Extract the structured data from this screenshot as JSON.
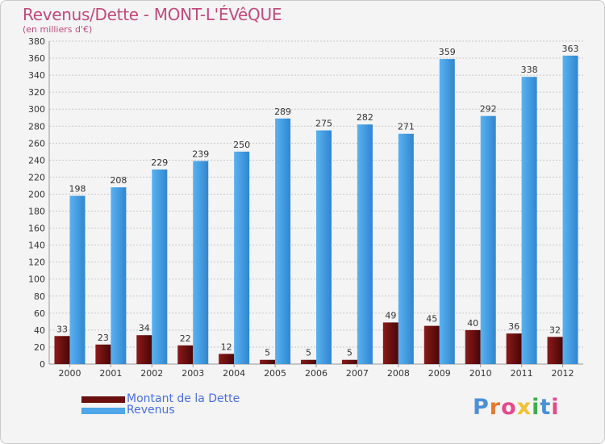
{
  "chart_data": {
    "type": "bar",
    "title": "Revenus/Dette - MONT-L'ÉVêQUE",
    "subtitle": "(en milliers d'€)",
    "xlabel": "",
    "ylabel": "",
    "ylim": [
      0,
      380
    ],
    "ytick_step": 20,
    "grid": true,
    "legend_position": "bottom-left",
    "categories": [
      "2000",
      "2001",
      "2002",
      "2003",
      "2004",
      "2005",
      "2006",
      "2007",
      "2008",
      "2009",
      "2010",
      "2011",
      "2012"
    ],
    "series": [
      {
        "name": "Montant de la Dette",
        "color": "#7a1010",
        "values": [
          33,
          23,
          34,
          22,
          12,
          5,
          5,
          5,
          49,
          45,
          40,
          36,
          32
        ]
      },
      {
        "name": "Revenus",
        "color": "#4fa6e8",
        "values": [
          198,
          208,
          229,
          239,
          250,
          289,
          275,
          282,
          271,
          359,
          292,
          338,
          363
        ]
      }
    ]
  },
  "logo": {
    "text": "Proxiti",
    "letter_colors": [
      "#4a90d9",
      "#e8792b",
      "#e24a8c",
      "#f2c230",
      "#3fae49",
      "#4a90d9",
      "#e24a8c"
    ]
  }
}
